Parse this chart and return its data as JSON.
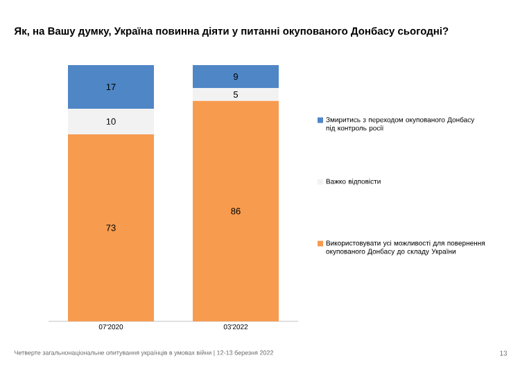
{
  "chart_data": {
    "type": "bar",
    "stacked": true,
    "title": "Як, на Вашу думку, Україна повинна діяти у питанні окупованого Донбасу сьогодні?",
    "categories": [
      "07'2020",
      "03'2022"
    ],
    "series": [
      {
        "name": "Використовувати усі можливості для повернення окупованого Донбасу до складу України",
        "color": "#f79b4e",
        "values": [
          73,
          86
        ]
      },
      {
        "name": "Важко відповісти",
        "color": "#f2f2f2",
        "values": [
          10,
          5
        ]
      },
      {
        "name": "Змиритись з переходом окупованого Донбасу під контроль росії",
        "color": "#4f86c6",
        "values": [
          17,
          9
        ]
      }
    ],
    "data_labels": true,
    "legend": "right",
    "annotations": [
      "Четверте загальнонаціональне опитування українців в умовах війни | 12-13 березня 2022",
      "13"
    ]
  }
}
